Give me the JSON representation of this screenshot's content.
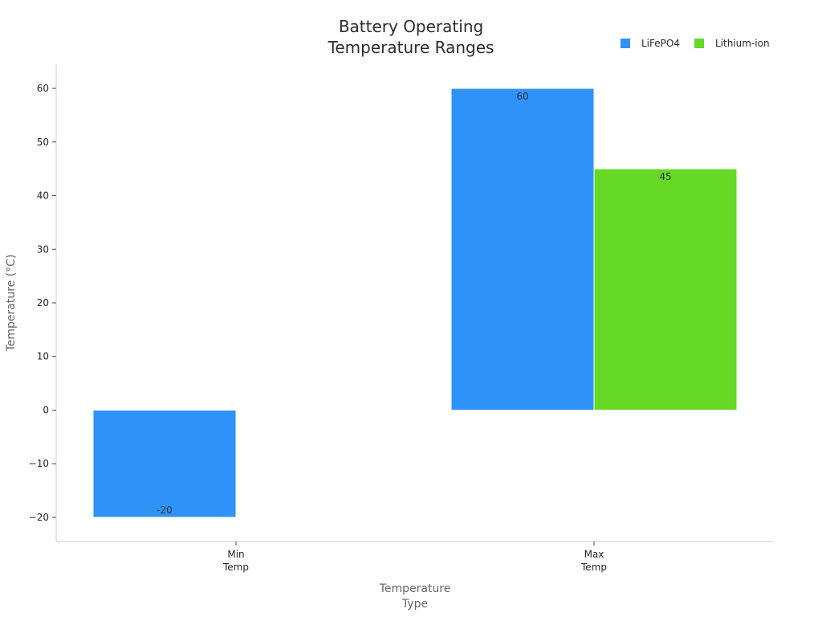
{
  "chart_data": {
    "type": "bar",
    "title": [
      "Battery Operating",
      "Temperature Ranges"
    ],
    "xlabel": [
      "Temperature",
      "Type"
    ],
    "ylabel": "Temperature (°C)",
    "categories": [
      [
        "Min",
        "Temp"
      ],
      [
        "Max",
        "Temp"
      ]
    ],
    "series": [
      {
        "name": "LiFePO4",
        "color": "#2f92f8",
        "values": [
          -20,
          60
        ]
      },
      {
        "name": "Lithium-ion",
        "color": "#66d926",
        "values": [
          null,
          45
        ]
      }
    ],
    "ylim": [
      -24.5,
      64.5
    ],
    "yticks": [
      -20,
      -10,
      0,
      10,
      20,
      30,
      40,
      50,
      60
    ],
    "ytick_labels": [
      "−20",
      "−10",
      "0",
      "10",
      "20",
      "30",
      "40",
      "50",
      "60"
    ],
    "data_labels": [
      [
        "-20",
        "60"
      ],
      [
        null,
        "45"
      ]
    ],
    "grid": false,
    "legend_position": "top-right"
  }
}
